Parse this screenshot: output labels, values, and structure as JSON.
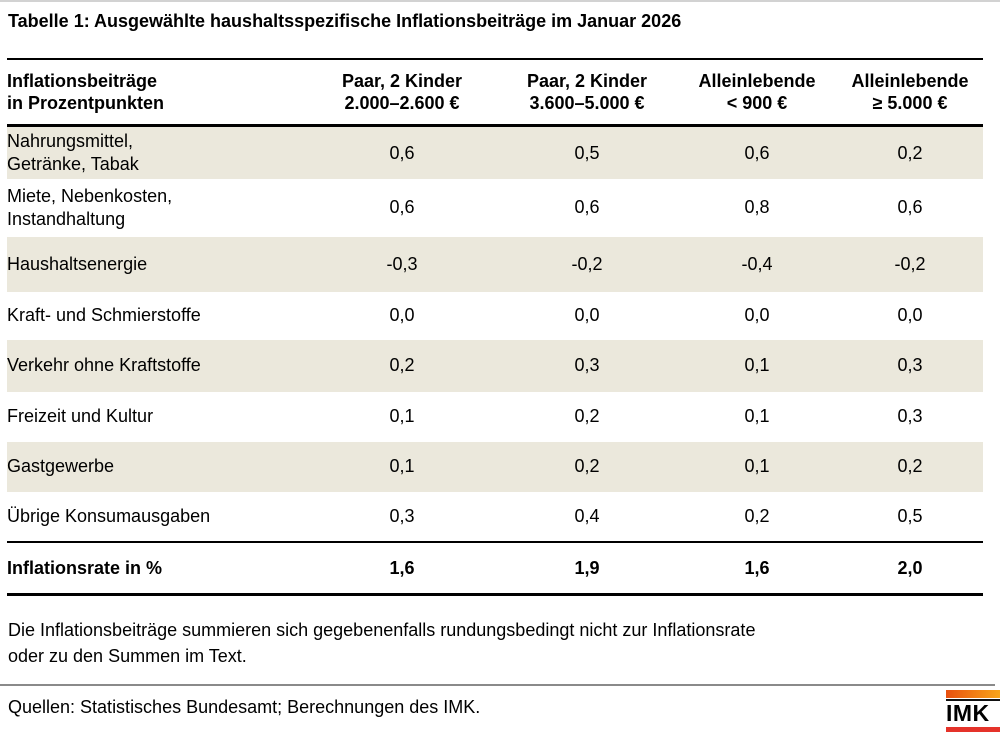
{
  "chart_data": {
    "type": "table",
    "title": "Tabelle 1: Ausgewählte haushaltsspezifische Inflationsbeiträge im Januar 2026",
    "header": {
      "label_col_lines": [
        "Inflationsbeiträge",
        "in Prozentpunkten"
      ],
      "value_cols": [
        {
          "lines": [
            "Paar, 2 Kinder",
            "2.000–2.600 €"
          ]
        },
        {
          "lines": [
            "Paar, 2 Kinder",
            "3.600–5.000 €"
          ]
        },
        {
          "lines": [
            "Alleinlebende",
            "< 900 €"
          ]
        },
        {
          "lines": [
            "Alleinlebende",
            "≥ 5.000 €"
          ]
        }
      ]
    },
    "rows": [
      {
        "label_lines": [
          "Nahrungsmittel,",
          "Getränke, Tabak"
        ],
        "values": [
          "0,6",
          "0,5",
          "0,6",
          "0,2"
        ]
      },
      {
        "label_lines": [
          "Miete, Nebenkosten,",
          "Instandhaltung"
        ],
        "values": [
          "0,6",
          "0,6",
          "0,8",
          "0,6"
        ]
      },
      {
        "label_lines": [
          "Haushaltsenergie"
        ],
        "values": [
          "-0,3",
          "-0,2",
          "-0,4",
          "-0,2"
        ]
      },
      {
        "label_lines": [
          "Kraft- und Schmierstoffe"
        ],
        "values": [
          "0,0",
          "0,0",
          "0,0",
          "0,0"
        ]
      },
      {
        "label_lines": [
          "Verkehr ohne Kraftstoffe"
        ],
        "values": [
          "0,2",
          "0,3",
          "0,1",
          "0,3"
        ]
      },
      {
        "label_lines": [
          "Freizeit und Kultur"
        ],
        "values": [
          "0,1",
          "0,2",
          "0,1",
          "0,3"
        ]
      },
      {
        "label_lines": [
          "Gastgewerbe"
        ],
        "values": [
          "0,1",
          "0,2",
          "0,1",
          "0,2"
        ]
      },
      {
        "label_lines": [
          "Übrige Konsumausgaben"
        ],
        "values": [
          "0,3",
          "0,4",
          "0,2",
          "0,5"
        ]
      }
    ],
    "total_row": {
      "label": "Inflationsrate in %",
      "values": [
        "1,6",
        "1,9",
        "1,6",
        "2,0"
      ]
    }
  },
  "footnote_lines": [
    "Die Inflationsbeiträge summieren sich gegebenenfalls rundungsbedingt nicht zur Inflationsrate",
    "oder zu den Summen im Text."
  ],
  "source_line": "Quellen: Statistisches Bundesamt; Berechnungen des IMK.",
  "logo_text": "IMK",
  "colors": {
    "row_shade": "#ebe8dc",
    "divider_gray": "#8a8a8a",
    "logo_orange_left": "#e8500f",
    "logo_orange_right": "#f9a51a",
    "logo_red": "#e5332a"
  }
}
